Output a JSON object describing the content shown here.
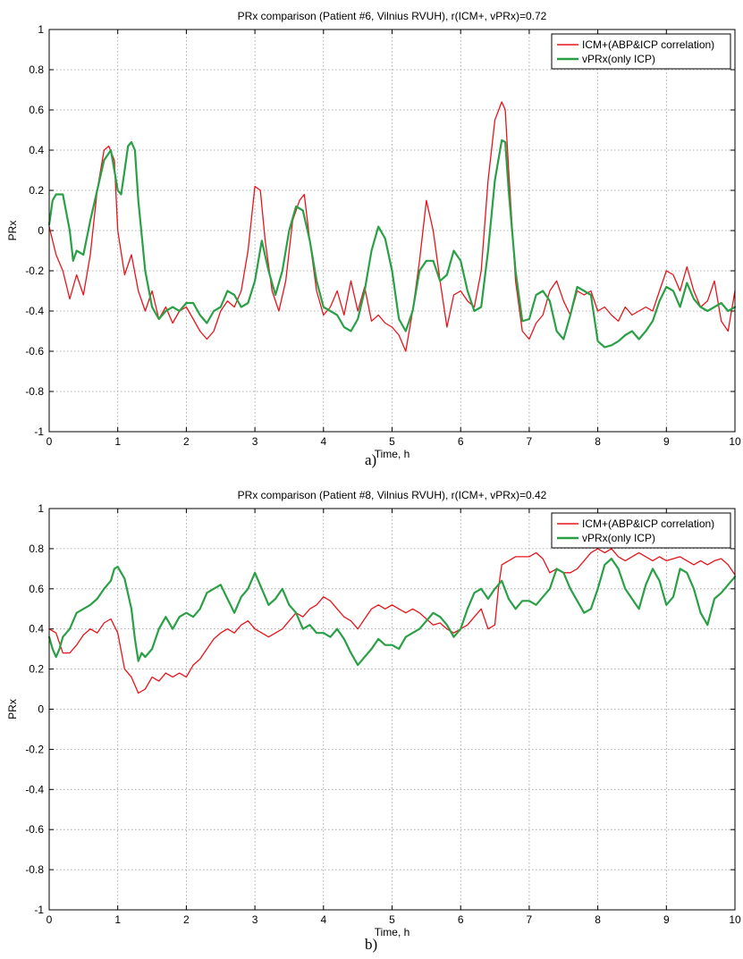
{
  "chart_data": [
    {
      "type": "line",
      "title": "PRx comparison (Patient #6, Vilnius RVUH), r(ICM+, vPRx)=0.72",
      "xlabel": "Time, h",
      "ylabel": "PRx",
      "xlim": [
        0,
        10
      ],
      "ylim": [
        -1,
        1
      ],
      "xticks": [
        "0",
        "1",
        "2",
        "3",
        "4",
        "5",
        "6",
        "7",
        "8",
        "9",
        "10"
      ],
      "yticks": [
        "-1",
        "-0.8",
        "-0.6",
        "-0.4",
        "-0.2",
        "0",
        "0.2",
        "0.4",
        "0.6",
        "0.8",
        "1"
      ],
      "grid": true,
      "legend_position": "top-right",
      "panel_label": "a)",
      "series": [
        {
          "name": "ICM+(ABP&ICP correlation)",
          "color": "#e8141b",
          "x": [
            0,
            0.1,
            0.2,
            0.3,
            0.4,
            0.5,
            0.6,
            0.7,
            0.8,
            0.87,
            0.95,
            1.0,
            1.1,
            1.2,
            1.3,
            1.4,
            1.5,
            1.6,
            1.7,
            1.8,
            1.9,
            2.0,
            2.1,
            2.2,
            2.3,
            2.4,
            2.5,
            2.6,
            2.7,
            2.8,
            2.9,
            3.0,
            3.08,
            3.15,
            3.25,
            3.35,
            3.45,
            3.55,
            3.65,
            3.72,
            3.8,
            3.9,
            4.0,
            4.1,
            4.2,
            4.3,
            4.4,
            4.5,
            4.6,
            4.7,
            4.8,
            4.9,
            5.0,
            5.1,
            5.2,
            5.3,
            5.4,
            5.5,
            5.6,
            5.7,
            5.8,
            5.9,
            6.0,
            6.1,
            6.2,
            6.3,
            6.4,
            6.5,
            6.6,
            6.65,
            6.7,
            6.8,
            6.9,
            7.0,
            7.1,
            7.2,
            7.3,
            7.4,
            7.5,
            7.6,
            7.7,
            7.8,
            7.9,
            8.0,
            8.1,
            8.2,
            8.3,
            8.4,
            8.5,
            8.6,
            8.7,
            8.8,
            8.9,
            9.0,
            9.1,
            9.2,
            9.3,
            9.4,
            9.5,
            9.6,
            9.7,
            9.8,
            9.9,
            10.0
          ],
          "values": [
            0.02,
            -0.12,
            -0.2,
            -0.34,
            -0.22,
            -0.32,
            -0.12,
            0.2,
            0.4,
            0.42,
            0.35,
            0.0,
            -0.22,
            -0.12,
            -0.3,
            -0.4,
            -0.3,
            -0.44,
            -0.38,
            -0.46,
            -0.4,
            -0.38,
            -0.44,
            -0.5,
            -0.54,
            -0.5,
            -0.4,
            -0.35,
            -0.38,
            -0.3,
            -0.1,
            0.22,
            0.2,
            -0.05,
            -0.3,
            -0.4,
            -0.25,
            0.05,
            0.15,
            0.18,
            -0.05,
            -0.3,
            -0.42,
            -0.38,
            -0.3,
            -0.42,
            -0.25,
            -0.4,
            -0.28,
            -0.45,
            -0.42,
            -0.46,
            -0.48,
            -0.52,
            -0.6,
            -0.4,
            -0.15,
            0.15,
            0.0,
            -0.25,
            -0.48,
            -0.32,
            -0.3,
            -0.35,
            -0.38,
            -0.2,
            0.25,
            0.55,
            0.64,
            0.6,
            0.3,
            -0.25,
            -0.5,
            -0.54,
            -0.46,
            -0.42,
            -0.3,
            -0.25,
            -0.35,
            -0.42,
            -0.3,
            -0.32,
            -0.3,
            -0.4,
            -0.38,
            -0.42,
            -0.45,
            -0.38,
            -0.42,
            -0.4,
            -0.38,
            -0.4,
            -0.3,
            -0.2,
            -0.22,
            -0.3,
            -0.18,
            -0.3,
            -0.38,
            -0.35,
            -0.25,
            -0.45,
            -0.5,
            -0.3
          ]
        },
        {
          "name": "vPRx(only ICP)",
          "color": "#2aa046",
          "x": [
            0,
            0.05,
            0.1,
            0.2,
            0.3,
            0.35,
            0.4,
            0.5,
            0.6,
            0.7,
            0.8,
            0.9,
            0.95,
            1.0,
            1.05,
            1.1,
            1.15,
            1.2,
            1.25,
            1.3,
            1.4,
            1.5,
            1.6,
            1.7,
            1.8,
            1.9,
            2.0,
            2.1,
            2.2,
            2.3,
            2.4,
            2.5,
            2.6,
            2.7,
            2.8,
            2.9,
            3.0,
            3.1,
            3.2,
            3.3,
            3.4,
            3.5,
            3.6,
            3.7,
            3.8,
            3.9,
            4.0,
            4.1,
            4.2,
            4.3,
            4.4,
            4.5,
            4.6,
            4.7,
            4.8,
            4.9,
            5.0,
            5.1,
            5.2,
            5.3,
            5.4,
            5.5,
            5.6,
            5.7,
            5.8,
            5.9,
            6.0,
            6.1,
            6.2,
            6.3,
            6.4,
            6.5,
            6.6,
            6.65,
            6.7,
            6.8,
            6.9,
            7.0,
            7.1,
            7.2,
            7.3,
            7.4,
            7.5,
            7.6,
            7.7,
            7.8,
            7.9,
            8.0,
            8.1,
            8.2,
            8.3,
            8.4,
            8.5,
            8.6,
            8.7,
            8.8,
            8.9,
            9.0,
            9.1,
            9.2,
            9.3,
            9.4,
            9.5,
            9.6,
            9.7,
            9.8,
            9.9,
            10.0
          ],
          "values": [
            0.03,
            0.15,
            0.18,
            0.18,
            0.0,
            -0.15,
            -0.1,
            -0.12,
            0.05,
            0.2,
            0.35,
            0.4,
            0.3,
            0.2,
            0.18,
            0.3,
            0.42,
            0.44,
            0.4,
            0.15,
            -0.2,
            -0.38,
            -0.44,
            -0.4,
            -0.38,
            -0.4,
            -0.36,
            -0.36,
            -0.42,
            -0.46,
            -0.4,
            -0.38,
            -0.3,
            -0.32,
            -0.38,
            -0.36,
            -0.25,
            -0.05,
            -0.2,
            -0.32,
            -0.2,
            0.0,
            0.12,
            0.1,
            -0.05,
            -0.25,
            -0.38,
            -0.4,
            -0.42,
            -0.48,
            -0.5,
            -0.44,
            -0.3,
            -0.1,
            0.02,
            -0.04,
            -0.2,
            -0.44,
            -0.5,
            -0.4,
            -0.2,
            -0.15,
            -0.15,
            -0.25,
            -0.22,
            -0.1,
            -0.15,
            -0.3,
            -0.4,
            -0.38,
            -0.1,
            0.25,
            0.45,
            0.44,
            0.2,
            -0.2,
            -0.45,
            -0.44,
            -0.32,
            -0.3,
            -0.35,
            -0.5,
            -0.54,
            -0.42,
            -0.28,
            -0.3,
            -0.32,
            -0.55,
            -0.58,
            -0.57,
            -0.55,
            -0.52,
            -0.5,
            -0.54,
            -0.5,
            -0.45,
            -0.35,
            -0.28,
            -0.3,
            -0.38,
            -0.26,
            -0.34,
            -0.38,
            -0.4,
            -0.38,
            -0.36,
            -0.4,
            -0.38
          ]
        }
      ]
    },
    {
      "type": "line",
      "title": "PRx comparison (Patient #8, Vilnius RVUH), r(ICM+, vPRx)=0.42",
      "xlabel": "Time, h",
      "ylabel": "PRx",
      "xlim": [
        0,
        10
      ],
      "ylim": [
        -1,
        1
      ],
      "xticks": [
        "0",
        "1",
        "2",
        "3",
        "4",
        "5",
        "6",
        "7",
        "8",
        "9",
        "10"
      ],
      "yticks": [
        "-1",
        "-0.8",
        "-0.6",
        "-0.4",
        "-0.2",
        "0",
        "0.2",
        "0.4",
        "0.6",
        "0.8",
        "1"
      ],
      "grid": true,
      "legend_position": "top-right",
      "panel_label": "b)",
      "series": [
        {
          "name": "ICM+(ABP&ICP correlation)",
          "color": "#e8141b",
          "x": [
            0,
            0.1,
            0.2,
            0.3,
            0.4,
            0.5,
            0.6,
            0.7,
            0.8,
            0.9,
            1.0,
            1.1,
            1.2,
            1.3,
            1.4,
            1.5,
            1.6,
            1.7,
            1.8,
            1.9,
            2.0,
            2.1,
            2.2,
            2.3,
            2.4,
            2.5,
            2.6,
            2.7,
            2.8,
            2.9,
            3.0,
            3.1,
            3.2,
            3.3,
            3.4,
            3.5,
            3.6,
            3.7,
            3.8,
            3.9,
            4.0,
            4.1,
            4.2,
            4.3,
            4.4,
            4.5,
            4.6,
            4.7,
            4.8,
            4.9,
            5.0,
            5.1,
            5.2,
            5.3,
            5.4,
            5.5,
            5.6,
            5.7,
            5.8,
            5.9,
            6.0,
            6.1,
            6.2,
            6.3,
            6.4,
            6.5,
            6.55,
            6.6,
            6.7,
            6.8,
            6.9,
            7.0,
            7.1,
            7.2,
            7.3,
            7.4,
            7.5,
            7.6,
            7.7,
            7.8,
            7.9,
            8.0,
            8.1,
            8.2,
            8.3,
            8.4,
            8.5,
            8.6,
            8.7,
            8.8,
            8.9,
            9.0,
            9.1,
            9.2,
            9.3,
            9.4,
            9.5,
            9.6,
            9.7,
            9.8,
            9.9,
            10.0
          ],
          "values": [
            0.4,
            0.38,
            0.28,
            0.28,
            0.32,
            0.37,
            0.4,
            0.38,
            0.43,
            0.45,
            0.38,
            0.2,
            0.16,
            0.08,
            0.1,
            0.16,
            0.14,
            0.18,
            0.16,
            0.18,
            0.16,
            0.22,
            0.25,
            0.3,
            0.35,
            0.38,
            0.4,
            0.38,
            0.42,
            0.44,
            0.4,
            0.38,
            0.36,
            0.38,
            0.4,
            0.44,
            0.48,
            0.46,
            0.5,
            0.52,
            0.56,
            0.54,
            0.5,
            0.46,
            0.44,
            0.4,
            0.45,
            0.5,
            0.52,
            0.5,
            0.52,
            0.5,
            0.48,
            0.5,
            0.48,
            0.45,
            0.42,
            0.43,
            0.4,
            0.38,
            0.4,
            0.42,
            0.46,
            0.5,
            0.4,
            0.42,
            0.6,
            0.72,
            0.74,
            0.76,
            0.76,
            0.76,
            0.78,
            0.75,
            0.68,
            0.7,
            0.68,
            0.68,
            0.7,
            0.74,
            0.78,
            0.8,
            0.78,
            0.8,
            0.76,
            0.74,
            0.76,
            0.78,
            0.76,
            0.74,
            0.76,
            0.74,
            0.75,
            0.76,
            0.74,
            0.72,
            0.74,
            0.72,
            0.74,
            0.75,
            0.72,
            0.67
          ]
        },
        {
          "name": "vPRx(only ICP)",
          "color": "#2aa046",
          "x": [
            0,
            0.05,
            0.1,
            0.15,
            0.2,
            0.3,
            0.4,
            0.5,
            0.6,
            0.7,
            0.8,
            0.9,
            0.95,
            1.0,
            1.1,
            1.2,
            1.25,
            1.3,
            1.35,
            1.4,
            1.5,
            1.6,
            1.7,
            1.8,
            1.9,
            2.0,
            2.1,
            2.2,
            2.3,
            2.4,
            2.5,
            2.6,
            2.7,
            2.8,
            2.9,
            3.0,
            3.1,
            3.2,
            3.3,
            3.4,
            3.5,
            3.6,
            3.7,
            3.8,
            3.9,
            4.0,
            4.1,
            4.2,
            4.3,
            4.4,
            4.5,
            4.6,
            4.7,
            4.8,
            4.9,
            5.0,
            5.1,
            5.2,
            5.3,
            5.4,
            5.5,
            5.6,
            5.7,
            5.8,
            5.9,
            6.0,
            6.1,
            6.2,
            6.3,
            6.4,
            6.5,
            6.6,
            6.7,
            6.8,
            6.9,
            7.0,
            7.1,
            7.2,
            7.3,
            7.4,
            7.5,
            7.6,
            7.7,
            7.8,
            7.9,
            8.0,
            8.1,
            8.2,
            8.3,
            8.4,
            8.5,
            8.6,
            8.7,
            8.8,
            8.9,
            9.0,
            9.1,
            9.2,
            9.3,
            9.4,
            9.5,
            9.6,
            9.7,
            9.8,
            9.9,
            10.0
          ],
          "values": [
            0.36,
            0.3,
            0.26,
            0.3,
            0.36,
            0.4,
            0.48,
            0.5,
            0.52,
            0.55,
            0.6,
            0.64,
            0.7,
            0.71,
            0.65,
            0.5,
            0.35,
            0.24,
            0.28,
            0.26,
            0.3,
            0.4,
            0.46,
            0.4,
            0.46,
            0.48,
            0.46,
            0.5,
            0.58,
            0.6,
            0.62,
            0.55,
            0.48,
            0.56,
            0.6,
            0.68,
            0.6,
            0.52,
            0.55,
            0.6,
            0.52,
            0.48,
            0.4,
            0.42,
            0.38,
            0.38,
            0.36,
            0.4,
            0.35,
            0.28,
            0.22,
            0.26,
            0.3,
            0.35,
            0.32,
            0.32,
            0.3,
            0.36,
            0.38,
            0.4,
            0.44,
            0.48,
            0.46,
            0.42,
            0.36,
            0.4,
            0.5,
            0.58,
            0.6,
            0.55,
            0.6,
            0.64,
            0.55,
            0.5,
            0.54,
            0.54,
            0.52,
            0.56,
            0.6,
            0.7,
            0.68,
            0.6,
            0.54,
            0.48,
            0.5,
            0.6,
            0.72,
            0.75,
            0.7,
            0.6,
            0.55,
            0.5,
            0.62,
            0.7,
            0.64,
            0.52,
            0.56,
            0.7,
            0.68,
            0.6,
            0.48,
            0.42,
            0.55,
            0.58,
            0.62,
            0.66
          ]
        }
      ]
    }
  ]
}
